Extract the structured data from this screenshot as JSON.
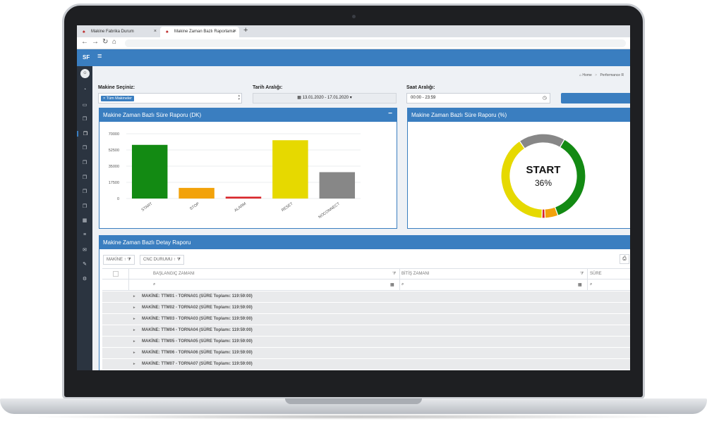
{
  "browser": {
    "tabs": [
      {
        "label": "Makine Fabrika Durum"
      },
      {
        "label": "Makine Zaman Bazlı Raporlama"
      }
    ],
    "close_glyph": "×",
    "new_tab_glyph": "+",
    "nav_icons": [
      "back-arrow-icon",
      "forward-arrow-icon",
      "reload-icon",
      "home-icon"
    ]
  },
  "app": {
    "brand": "SF",
    "menu_icon": "hamburger-icon"
  },
  "sidebar": {
    "avatar": "user-icon",
    "items": [
      {
        "icon": "dashboard-icon",
        "glyph": "◔"
      },
      {
        "icon": "monitor-icon",
        "glyph": "▭"
      },
      {
        "icon": "copy-icon",
        "glyph": "❐"
      },
      {
        "icon": "copy-icon",
        "glyph": "❐",
        "active": true
      },
      {
        "icon": "copy-icon",
        "glyph": "❐"
      },
      {
        "icon": "copy-icon",
        "glyph": "❐"
      },
      {
        "icon": "copy-icon",
        "glyph": "❐"
      },
      {
        "icon": "copy-icon",
        "glyph": "❐"
      },
      {
        "icon": "copy-icon",
        "glyph": "❐"
      },
      {
        "icon": "calendar-icon",
        "glyph": "▦"
      },
      {
        "icon": "list-icon",
        "glyph": "≡"
      },
      {
        "icon": "mail-icon",
        "glyph": "✉"
      },
      {
        "icon": "pencil-icon",
        "glyph": "✎"
      },
      {
        "icon": "gear-icon",
        "glyph": "⚙"
      }
    ]
  },
  "breadcrumb": {
    "home": "Home",
    "separator": ">",
    "current": "Performance R"
  },
  "filters": {
    "machine_label": "Makine Seçiniz:",
    "machine_chip": "× Tüm Makineler",
    "date_label": "Tarih Aralığı:",
    "date_value": "▦ 13.01.2020 - 17.01.2020 ▾",
    "time_label": "Saat Aralığı:",
    "time_value": "00:00 - 23:59",
    "clock_icon": "clock-icon"
  },
  "panels": {
    "bar_title": "Makine Zaman Bazlı Süre Raporu (DK)",
    "donut_title": "Makine Zaman Bazlı Süre Raporu (%)",
    "minimize_glyph": "−"
  },
  "chart_data": [
    {
      "type": "bar",
      "categories": [
        "START",
        "STOP",
        "ALARM",
        "RESET",
        "NOCONNECT"
      ],
      "values": [
        58000,
        11500,
        2000,
        63000,
        28500
      ],
      "colors": [
        "#138a13",
        "#f2a20a",
        "#d9252a",
        "#e6d900",
        "#878787"
      ],
      "yticks": [
        0,
        17500,
        35000,
        52500,
        70000
      ],
      "ylim": [
        0,
        70000
      ],
      "grid": true
    },
    {
      "type": "pie",
      "categories": [
        "START",
        "STOP",
        "ALARM",
        "RESET",
        "NOCONNECT"
      ],
      "values": [
        36,
        5,
        1.2,
        40,
        17.8
      ],
      "colors": [
        "#138a13",
        "#f2a20a",
        "#d9252a",
        "#e6d900",
        "#878787"
      ],
      "center_label": "START",
      "center_value": "36%"
    }
  ],
  "table": {
    "title": "Makine Zaman Bazlı Detay Raporu",
    "group_buttons": [
      "MAKİNE ↑ ⧩",
      "CNC DURUMU ↑ ⧩"
    ],
    "export_icon": "export-icon",
    "columns": [
      "BAŞLANGIÇ ZAMANI",
      "BİTİŞ ZAMANI",
      "SÜRE"
    ],
    "rows": [
      "MAKİNE: TTM01 - TORNA01 (SÜRE Toplamı: 119:59:00)",
      "MAKİNE: TTM02 - TORNA02 (SÜRE Toplamı: 119:59:00)",
      "MAKİNE: TTM03 - TORNA03 (SÜRE Toplamı: 119:59:00)",
      "MAKİNE: TTM04 - TORNA04 (SÜRE Toplamı: 119:59:00)",
      "MAKİNE: TTM05 - TORNA05 (SÜRE Toplamı: 119:59:00)",
      "MAKİNE: TTM06 - TORNA06 (SÜRE Toplamı: 119:59:00)",
      "MAKİNE: TTM07 - TORNA07 (SÜRE Toplamı: 119:59:00)"
    ]
  }
}
